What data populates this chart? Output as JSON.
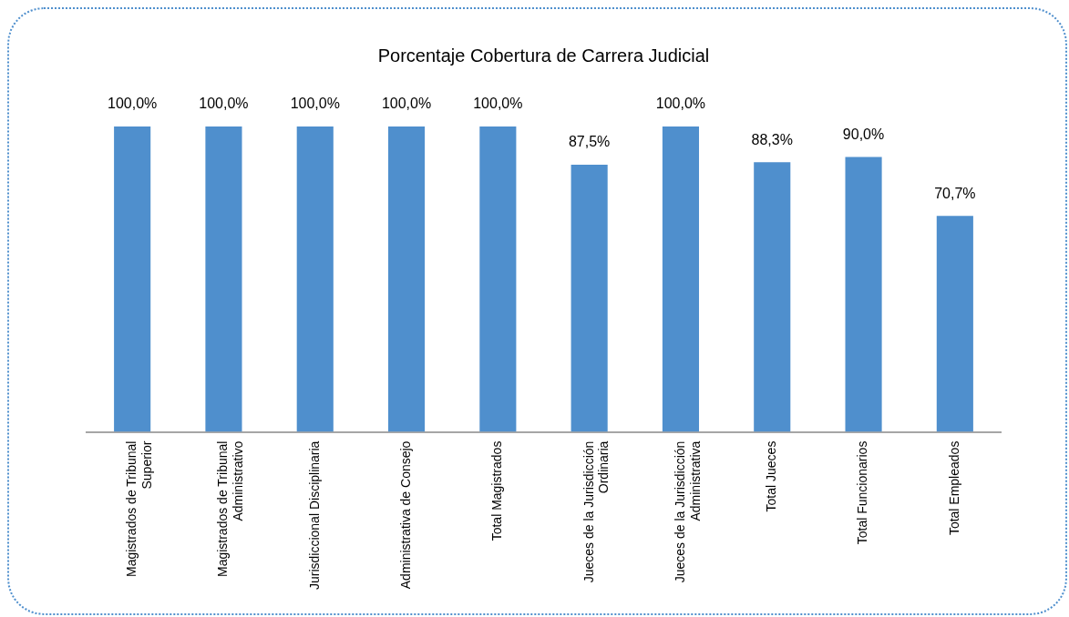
{
  "chart_data": {
    "type": "bar",
    "title": "Porcentaje Cobertura de Carrera Judicial",
    "categories": [
      "Magistrados de Tribunal Superior",
      "Magistrados de Tribunal Administrativo",
      "Jurisdiccional Disciplinaria",
      "Administrativa de Consejo",
      "Total Magistrados",
      "Jueces de la Jurisdicción Ordinaria",
      "Jueces de la Jurisdicción Administrativa",
      "Total Jueces",
      "Total Funcionarios",
      "Total Empleados"
    ],
    "values": [
      100,
      100,
      100,
      100,
      100,
      87.5,
      100,
      88.3,
      90,
      70.7
    ],
    "value_labels": [
      "100,0%",
      "100,0%",
      "100,0%",
      "100,0%",
      "100,0%",
      "87,5%",
      "100,0%",
      "88,3%",
      "90,0%",
      "70,7%"
    ],
    "color": "#4f8fcd",
    "grid": false,
    "legend": false,
    "tick_labels": "x"
  }
}
